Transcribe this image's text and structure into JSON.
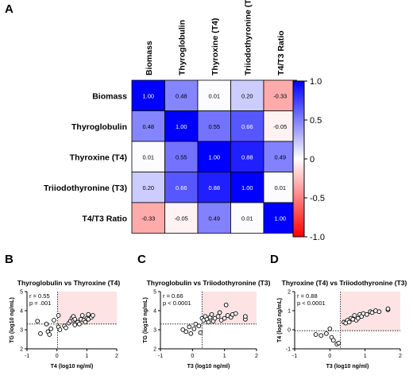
{
  "panel_letters": {
    "A": "A",
    "B": "B",
    "C": "C",
    "D": "D"
  },
  "colors": {
    "positive": "#0000ff",
    "negative": "#ff0000",
    "neutral": "#ffffff",
    "quadrant": "#fde3e4"
  },
  "chart_data": [
    {
      "type": "heatmap",
      "panel": "A",
      "columns": [
        "Biomass",
        "Thyroglobulin",
        "Thyroxine (T4)",
        "Triiodothyronine (T3)",
        "T4/T3 Ratio"
      ],
      "rows": [
        "Biomass",
        "Thyroglobulin",
        "Thyroxine (T4)",
        "Triiodothyronine (T3)",
        "T4/T3 Ratio"
      ],
      "values": [
        [
          1.0,
          0.48,
          0.01,
          0.2,
          -0.33
        ],
        [
          0.48,
          1.0,
          0.55,
          0.66,
          -0.05
        ],
        [
          0.01,
          0.55,
          1.0,
          0.88,
          0.49
        ],
        [
          0.2,
          0.66,
          0.88,
          1.0,
          0.01
        ],
        [
          -0.33,
          -0.05,
          0.49,
          0.01,
          1.0
        ]
      ],
      "value_labels": [
        [
          "1.00",
          "0.48",
          "0.01",
          "0.20",
          "-0.33"
        ],
        [
          "0.48",
          "1.00",
          "0.55",
          "0.66",
          "-0.05"
        ],
        [
          "0.01",
          "0.55",
          "1.00",
          "0.88",
          "0.49"
        ],
        [
          "0.20",
          "0.66",
          "0.88",
          "1.00",
          "0.01"
        ],
        [
          "-0.33",
          "-0.05",
          "0.49",
          "0.01",
          "1.00"
        ]
      ],
      "colorbar": {
        "range": [
          -1,
          1
        ],
        "ticks": [
          "1.0",
          "0.5",
          "0",
          "-0.5",
          "-1.0"
        ],
        "tick_values": [
          1.0,
          0.5,
          0,
          -0.5,
          -1.0
        ]
      }
    },
    {
      "type": "scatter",
      "panel": "B",
      "title": "Thyroglobulin vs Thyroxine (T4)",
      "xlabel": "T4 (log10 ng/ml)",
      "ylabel": "TG (log10 ng/mL)",
      "annotation": [
        "r = 0.55",
        "p = .001"
      ],
      "xlim": [
        -1,
        2
      ],
      "ylim": [
        2,
        5
      ],
      "xticks": [
        "-1",
        "0",
        "1",
        "2"
      ],
      "xtick_values": [
        -1,
        0,
        1,
        2
      ],
      "yticks": [
        "2",
        "3",
        "4",
        "5"
      ],
      "ytick_values": [
        2,
        3,
        4,
        5
      ],
      "threshold": {
        "x": 0.02,
        "y": 3.3
      },
      "points": [
        [
          -0.65,
          3.45
        ],
        [
          -0.55,
          2.8
        ],
        [
          -0.35,
          3.3
        ],
        [
          -0.3,
          2.9
        ],
        [
          -0.25,
          2.75
        ],
        [
          -0.2,
          3.05
        ],
        [
          -0.1,
          3.5
        ],
        [
          0.05,
          3.75
        ],
        [
          0.05,
          3.15
        ],
        [
          0.1,
          3.0
        ],
        [
          0.25,
          3.2
        ],
        [
          0.3,
          3.1
        ],
        [
          0.4,
          3.35
        ],
        [
          0.45,
          3.45
        ],
        [
          0.5,
          3.6
        ],
        [
          0.55,
          3.5
        ],
        [
          0.55,
          3.7
        ],
        [
          0.6,
          3.55
        ],
        [
          0.6,
          3.25
        ],
        [
          0.7,
          3.4
        ],
        [
          0.75,
          3.3
        ],
        [
          0.8,
          3.55
        ],
        [
          0.85,
          3.75
        ],
        [
          0.9,
          3.5
        ],
        [
          0.95,
          3.4
        ],
        [
          1.0,
          3.6
        ],
        [
          1.05,
          3.8
        ],
        [
          1.05,
          3.55
        ],
        [
          1.15,
          3.65
        ],
        [
          1.2,
          3.75
        ]
      ]
    },
    {
      "type": "scatter",
      "panel": "C",
      "title": "Thyroglobulin vs Triiodothyronine (T3)",
      "xlabel": "T3 (log10 ng/ml)",
      "ylabel": "TG (log10 ng/mL)",
      "annotation": [
        "r = 0.66",
        "p < 0.0001"
      ],
      "xlim": [
        -1,
        2
      ],
      "ylim": [
        2,
        5
      ],
      "xticks": [
        "-1",
        "0",
        "1",
        "2"
      ],
      "xtick_values": [
        -1,
        0,
        1,
        2
      ],
      "yticks": [
        "2",
        "3",
        "4",
        "5"
      ],
      "ytick_values": [
        2,
        3,
        4,
        5
      ],
      "threshold": {
        "x": 0.3,
        "y": 3.3
      },
      "points": [
        [
          -0.3,
          3.0
        ],
        [
          -0.2,
          2.9
        ],
        [
          -0.1,
          3.15
        ],
        [
          -0.05,
          2.8
        ],
        [
          0.05,
          3.05
        ],
        [
          0.1,
          3.3
        ],
        [
          0.2,
          3.2
        ],
        [
          0.25,
          2.85
        ],
        [
          0.3,
          3.6
        ],
        [
          0.35,
          3.5
        ],
        [
          0.4,
          3.7
        ],
        [
          0.45,
          3.55
        ],
        [
          0.5,
          3.4
        ],
        [
          0.55,
          3.65
        ],
        [
          0.6,
          3.8
        ],
        [
          0.65,
          3.45
        ],
        [
          0.7,
          3.6
        ],
        [
          0.8,
          3.7
        ],
        [
          0.85,
          3.9
        ],
        [
          0.9,
          3.5
        ],
        [
          1.0,
          3.6
        ],
        [
          1.05,
          4.3
        ],
        [
          1.1,
          3.75
        ],
        [
          1.2,
          3.65
        ],
        [
          1.25,
          3.8
        ],
        [
          1.35,
          3.85
        ],
        [
          1.65,
          3.55
        ],
        [
          1.65,
          3.7
        ]
      ]
    },
    {
      "type": "scatter",
      "panel": "D",
      "title": "Thyroxine (T4) vs Triiodothyronine (T3)",
      "xlabel": "T3 (log10 ng/ml)",
      "ylabel": "T4 (log10 ng/mL)",
      "annotation": [
        "r = 0.88",
        "p < 0.0001"
      ],
      "xlim": [
        -1,
        2
      ],
      "ylim": [
        -1,
        2
      ],
      "xticks": [
        "-1",
        "0",
        "1",
        "2"
      ],
      "xtick_values": [
        -1,
        0,
        1,
        2
      ],
      "yticks": [
        "-1",
        "0",
        "1",
        "2"
      ],
      "ytick_values": [
        -1,
        0,
        1,
        2
      ],
      "threshold": {
        "x": 0.3,
        "y": -0.05
      },
      "points": [
        [
          -0.4,
          -0.25
        ],
        [
          -0.25,
          -0.3
        ],
        [
          -0.1,
          -0.2
        ],
        [
          0.0,
          0.05
        ],
        [
          0.05,
          -0.4
        ],
        [
          0.1,
          -0.55
        ],
        [
          0.2,
          -0.75
        ],
        [
          0.25,
          -0.7
        ],
        [
          0.4,
          0.4
        ],
        [
          0.45,
          0.35
        ],
        [
          0.5,
          0.5
        ],
        [
          0.55,
          0.4
        ],
        [
          0.6,
          0.6
        ],
        [
          0.65,
          0.55
        ],
        [
          0.7,
          0.75
        ],
        [
          0.75,
          0.5
        ],
        [
          0.8,
          0.6
        ],
        [
          0.85,
          0.8
        ],
        [
          0.9,
          0.7
        ],
        [
          0.95,
          0.85
        ],
        [
          1.05,
          0.8
        ],
        [
          1.15,
          0.95
        ],
        [
          1.2,
          0.9
        ],
        [
          1.3,
          1.0
        ],
        [
          1.4,
          0.95
        ],
        [
          1.65,
          1.05
        ],
        [
          1.65,
          1.1
        ]
      ]
    }
  ]
}
